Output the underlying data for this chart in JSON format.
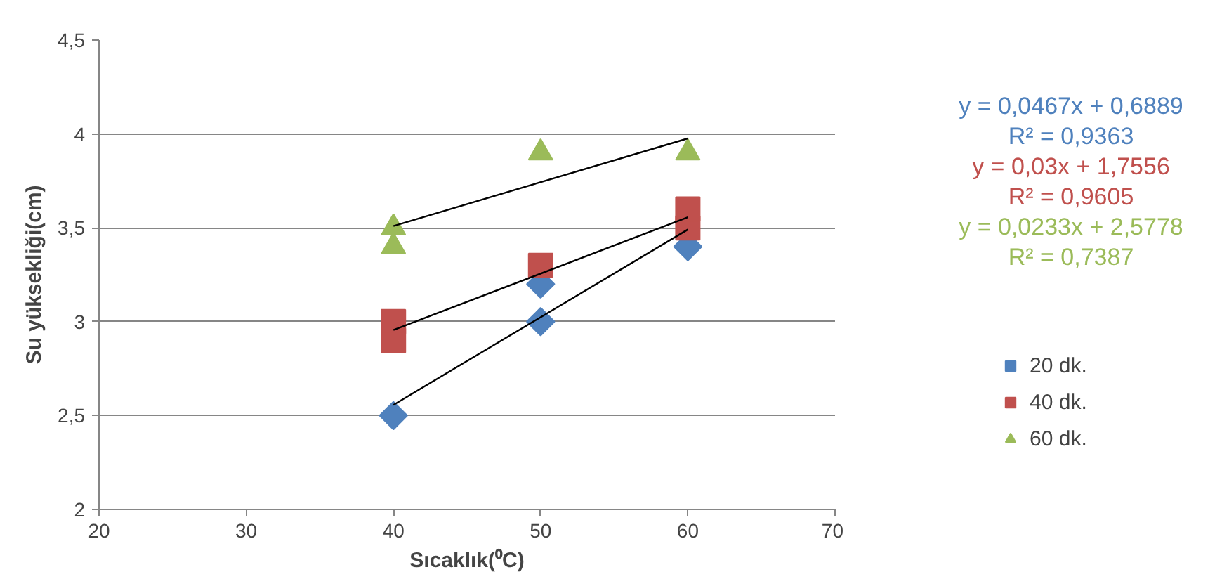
{
  "chart_data": {
    "type": "scatter",
    "xlabel": "Sıcaklık(⁰C)",
    "ylabel": "Su yüksekliği(cm)",
    "xlim": [
      20,
      70
    ],
    "xticks": [
      20,
      30,
      40,
      50,
      60,
      70
    ],
    "ylim": [
      2,
      4.5
    ],
    "yticks": [
      2,
      {
        "value": 2.5,
        "label": "2,5"
      },
      3,
      {
        "value": 3.5,
        "label": "3,5"
      },
      4,
      {
        "value": 4.5,
        "label": "4,5"
      }
    ],
    "grid": "y",
    "legend": "right",
    "series": [
      {
        "name": "20 dk.",
        "color": "#4f81bd",
        "marker": "diamond",
        "x": [
          40,
          50,
          50,
          60
        ],
        "values": [
          2.5,
          3.0,
          3.2,
          3.4
        ]
      },
      {
        "name": "40 dk.",
        "color": "#c0504d",
        "marker": "square",
        "x": [
          40,
          40,
          50,
          60,
          60
        ],
        "values": [
          2.9,
          3.0,
          3.3,
          3.5,
          3.6
        ]
      },
      {
        "name": "60 dk.",
        "color": "#9bbb59",
        "marker": "triangle",
        "x": [
          40,
          40,
          50,
          60
        ],
        "values": [
          3.4,
          3.5,
          3.9,
          3.9
        ]
      },
      {
        "type": "line",
        "color": "#000000",
        "x": [
          40,
          60
        ],
        "values": [
          2.557,
          3.491
        ]
      },
      {
        "type": "line",
        "color": "#000000",
        "x": [
          40,
          60
        ],
        "values": [
          2.956,
          3.556
        ]
      },
      {
        "type": "line",
        "color": "#000000",
        "x": [
          40,
          60
        ],
        "values": [
          3.51,
          3.976
        ]
      }
    ],
    "annotations": [
      "y = 0,0467x + 0,6889",
      "R² = 0,9363",
      "y = 0,03x + 1,7556",
      "R² = 0,9605",
      "y = 0,0233x + 2,5778",
      "R² = 0,7387"
    ]
  }
}
